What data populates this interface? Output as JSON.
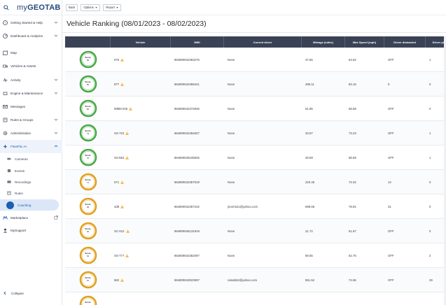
{
  "app": {
    "logo_prefix": "my",
    "logo_main": "GEOTAB"
  },
  "colors": {
    "brand": "#25477b",
    "accent": "#1b5fb6",
    "header_bg": "#3a4356",
    "score_green": "#4aa84a",
    "score_orange": "#e0a020",
    "warning": "#f5a623"
  },
  "sidebar": {
    "search_icon": "search-icon",
    "items": [
      {
        "label": "Getting Started & Help",
        "icon": "help-icon",
        "chevron": true
      },
      {
        "label": "Dashboard & Analytics",
        "icon": "dashboard-icon",
        "chevron": true
      },
      {
        "label": "Map",
        "icon": "map-icon",
        "chevron": false
      },
      {
        "label": "Vehicles & Assets",
        "icon": "truck-icon",
        "chevron": false
      },
      {
        "label": "Activity",
        "icon": "activity-icon",
        "chevron": true
      },
      {
        "label": "Engine & Maintenance",
        "icon": "engine-icon",
        "chevron": true
      },
      {
        "label": "Messages",
        "icon": "mail-icon",
        "chevron": false
      },
      {
        "label": "Rules & Groups",
        "icon": "rules-icon",
        "chevron": true
      },
      {
        "label": "Administration",
        "icon": "gear-icon",
        "chevron": true
      },
      {
        "label": "FleetFlix AI",
        "icon": "ai-icon",
        "chevron": true
      }
    ],
    "sub_items": [
      {
        "label": "Cameras",
        "icon": "camera-icon"
      },
      {
        "label": "Events",
        "icon": "event-icon"
      },
      {
        "label": "Recordings",
        "icon": "video-icon"
      },
      {
        "label": "Rules",
        "icon": "rules-icon"
      },
      {
        "label": "Coaching",
        "icon": "coaching-icon"
      }
    ],
    "bottom_items": [
      {
        "label": "Marketplace",
        "icon": "marketplace-icon"
      },
      {
        "label": "MySupport",
        "icon": "support-icon"
      }
    ],
    "collapse_label": "Collapse"
  },
  "toolbar": {
    "back_label": "Back",
    "options_label": "Options",
    "report_label": "Report"
  },
  "page": {
    "title": "Vehicle Ranking (08/01/2023 - 08/02/2023)"
  },
  "table": {
    "columns": [
      "",
      "Vehicle",
      "IMEI",
      "Current driver",
      "Mileage (miles)",
      "Max Speed (mph)",
      "Driver distracted",
      "Driver phone"
    ],
    "score_label": "Score",
    "rows": [
      {
        "score_color": "green",
        "score": "86",
        "vehicle": "676",
        "warn": true,
        "imei": "864809042363276",
        "driver": "None",
        "mileage": "37.55",
        "max_speed": "64.62",
        "distracted": "OFF",
        "phone": "1"
      },
      {
        "score_color": "green",
        "score": "85",
        "vehicle": "877",
        "warn": true,
        "imei": "864809042359441",
        "driver": "None",
        "mileage": "495.11",
        "max_speed": "83.16",
        "distracted": "0",
        "phone": "0"
      },
      {
        "score_color": "green",
        "score": "80",
        "vehicle": "MMM 025",
        "warn": true,
        "imei": "864809042374846",
        "driver": "None",
        "mileage": "51.85",
        "max_speed": "68.59",
        "distracted": "OFF",
        "phone": "0"
      },
      {
        "score_color": "green",
        "score": "79",
        "vehicle": "SS-722",
        "warn": true,
        "imei": "864809042364827",
        "driver": "None",
        "mileage": "33.57",
        "max_speed": "73.23",
        "distracted": "OFF",
        "phone": "1"
      },
      {
        "score_color": "green",
        "score": "76",
        "vehicle": "SS-552",
        "warn": true,
        "imei": "864809045105826",
        "driver": "None",
        "mileage": "28.59",
        "max_speed": "68.59",
        "distracted": "OFF",
        "phone": "1"
      },
      {
        "score_color": "orange",
        "score": "72",
        "vehicle": "571",
        "warn": true,
        "imei": "864809042357919",
        "driver": "None",
        "mileage": "220.45",
        "max_speed": "73.32",
        "distracted": "14",
        "phone": "0"
      },
      {
        "score_color": "orange",
        "score": "68",
        "vehicle": "4d9",
        "warn": true,
        "imei": "864809042357232",
        "driver": "jmorris21@yahoo.com",
        "mileage": "699.65",
        "max_speed": "78.91",
        "distracted": "31",
        "phone": "0"
      },
      {
        "score_color": "orange",
        "score": "66",
        "vehicle": "SC-012",
        "warn": true,
        "imei": "864809045131919",
        "driver": "None",
        "mileage": "21.72",
        "max_speed": "51.57",
        "distracted": "OFF",
        "phone": "0"
      },
      {
        "score_color": "orange",
        "score": "64",
        "vehicle": "SS-777",
        "warn": true,
        "imei": "864809042362097",
        "driver": "None",
        "mileage": "59.55",
        "max_speed": "62.75",
        "distracted": "OFF",
        "phone": "2"
      },
      {
        "score_color": "orange",
        "score": "61",
        "vehicle": "582",
        "warn": true,
        "imei": "864809043023597",
        "driver": "rainab52@yahoo.com",
        "mileage": "551.52",
        "max_speed": "74.56",
        "distracted": "OFF",
        "phone": "29"
      },
      {
        "score_color": "orange",
        "score": "",
        "vehicle": "",
        "warn": false,
        "imei": "",
        "driver": "",
        "mileage": "",
        "max_speed": "",
        "distracted": "",
        "phone": ""
      }
    ]
  }
}
